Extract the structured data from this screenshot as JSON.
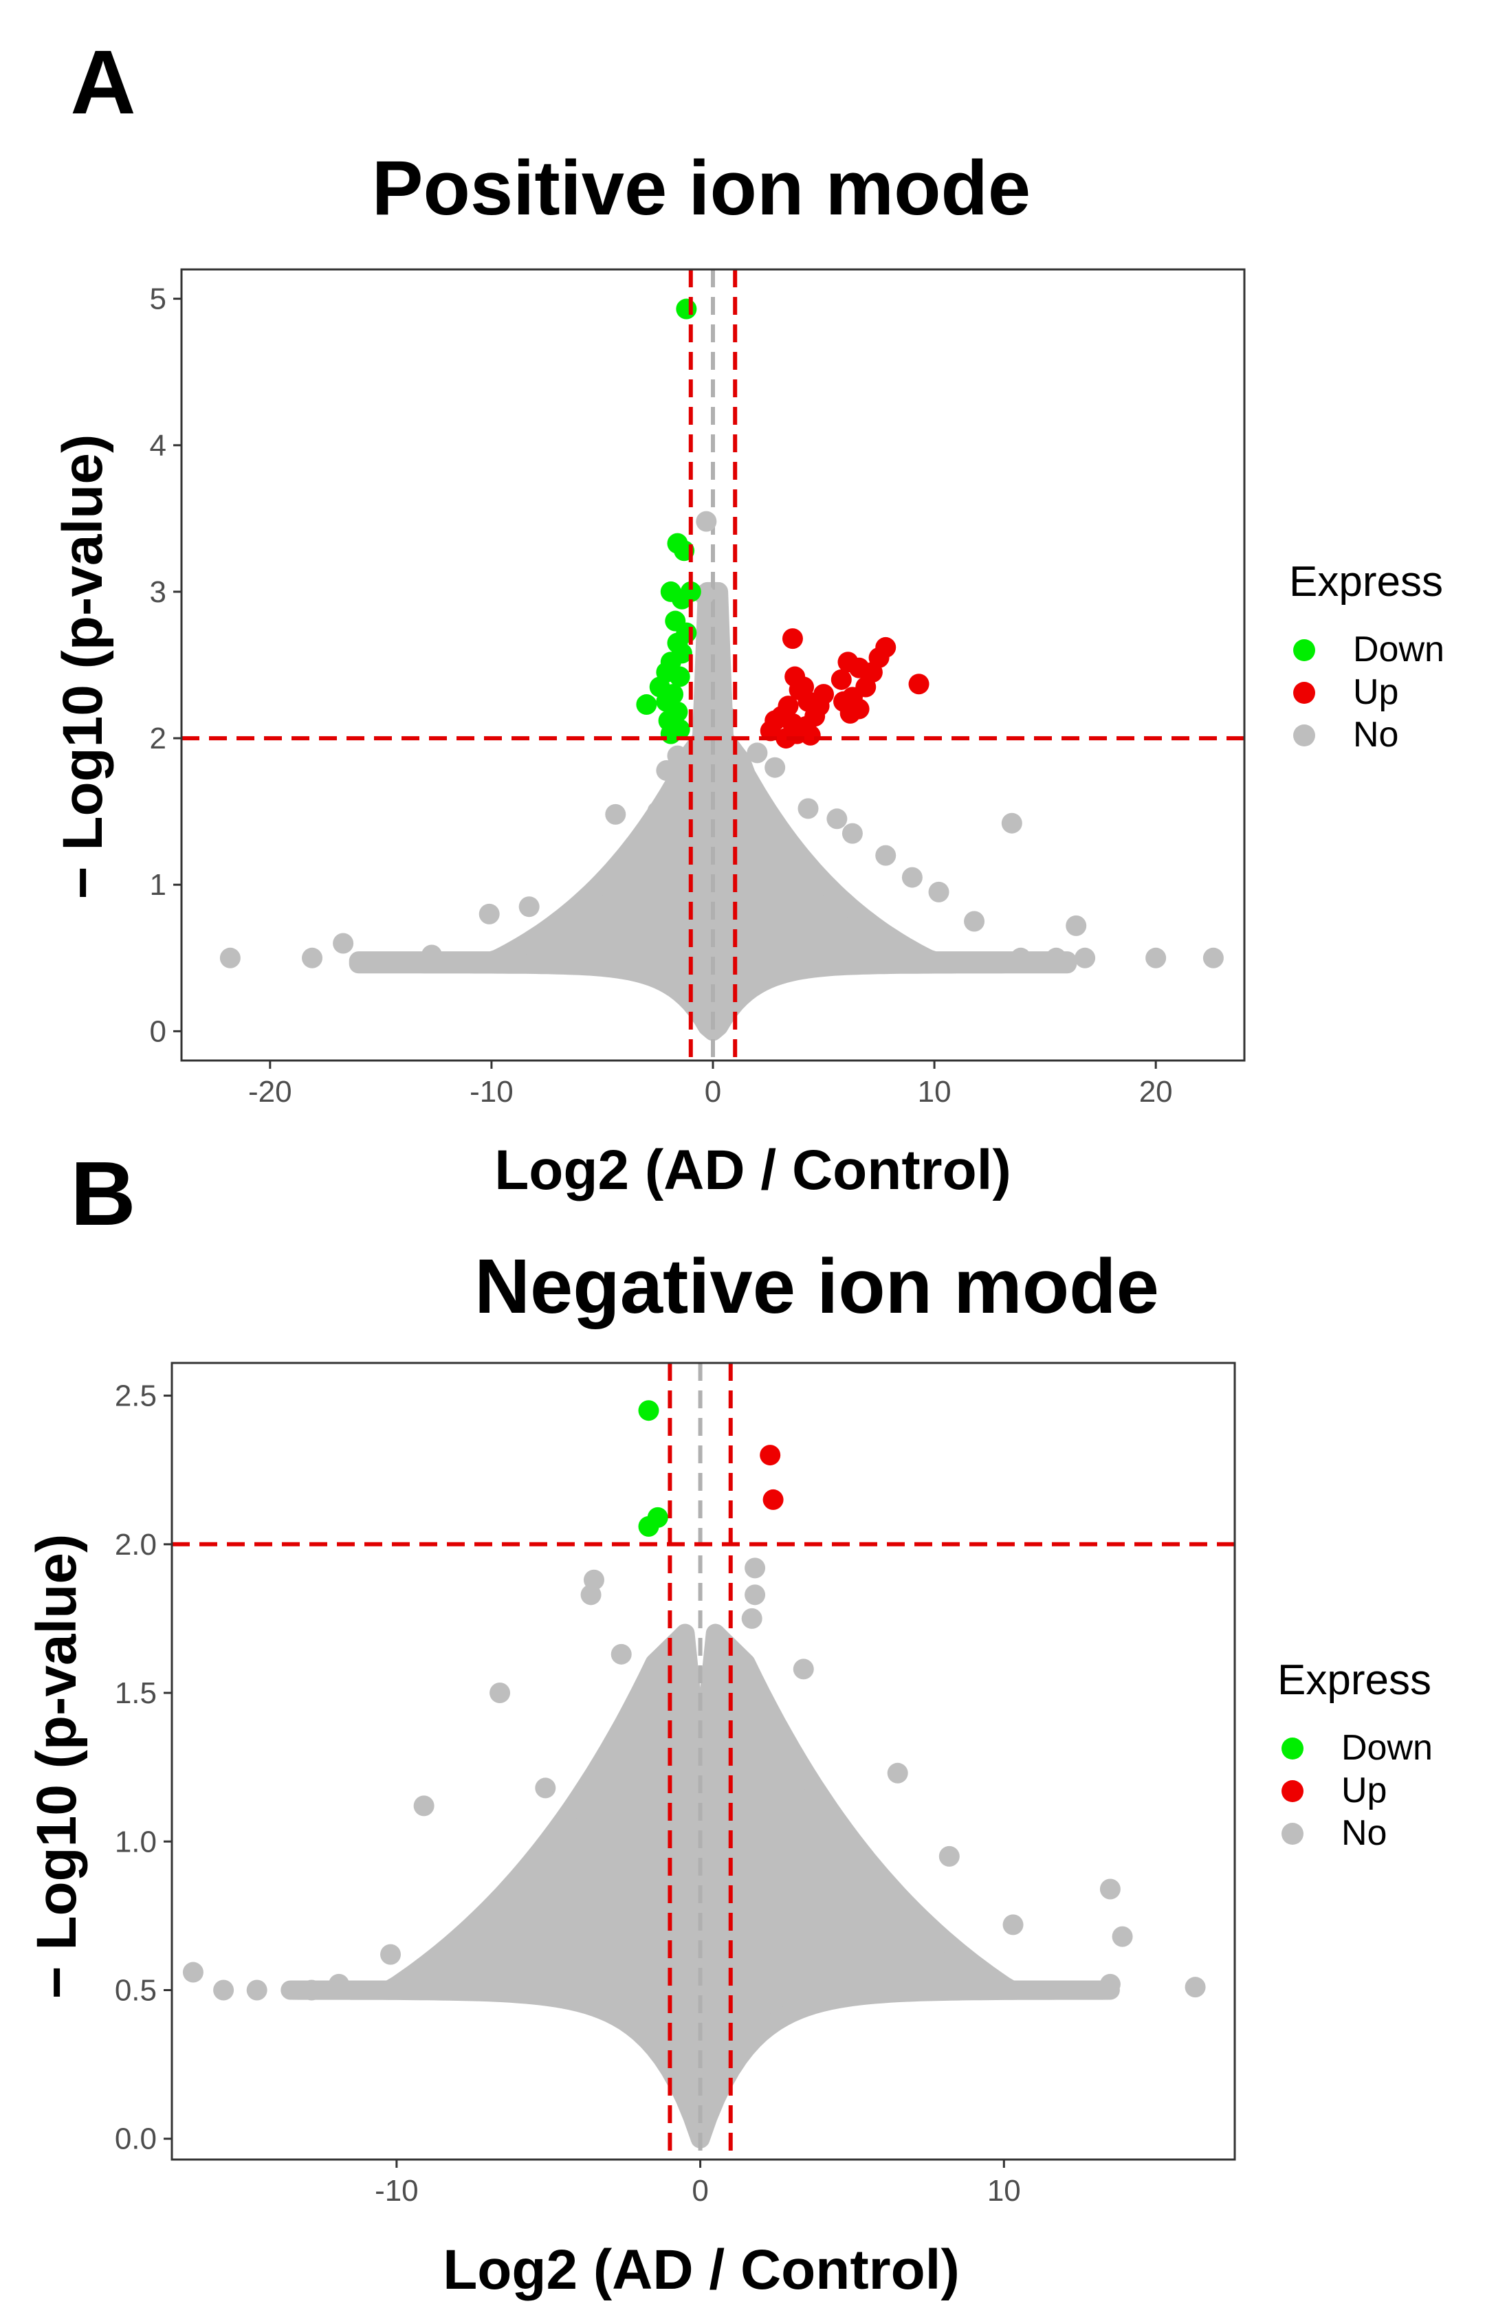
{
  "panels": [
    {
      "letter": "A",
      "chart_data": {
        "type": "scatter",
        "title": "Positive ion mode",
        "xlabel": "Log2 (AD / Control)",
        "ylabel": "− Log10 (p-value)",
        "xlim": [
          -24,
          24
        ],
        "ylim": [
          -0.2,
          5.2
        ],
        "xticks": [
          -20,
          -10,
          0,
          10,
          20
        ],
        "yticks": [
          0,
          1,
          2,
          3,
          4,
          5
        ],
        "ytick_labels": [
          "0",
          "1",
          "2",
          "3",
          "4",
          "5"
        ],
        "grid": false,
        "legend": {
          "title": "Express",
          "position": "right",
          "entries": [
            "Down",
            "Up",
            "No"
          ]
        },
        "threshold_lines": {
          "vertical": [
            -1,
            1
          ],
          "horizontal": 2,
          "center": 0
        },
        "colors": {
          "Down": "#00ee00",
          "Up": "#ee0000",
          "No": "#bebebe",
          "threshold": "#e00000",
          "center": "#b0b0b0"
        },
        "series": [
          {
            "name": "Down",
            "points": [
              [
                -1.2,
                4.93
              ],
              [
                -1.6,
                3.33
              ],
              [
                -1.3,
                3.28
              ],
              [
                -1.9,
                3.0
              ],
              [
                -1.0,
                3.0
              ],
              [
                -1.4,
                2.95
              ],
              [
                -1.7,
                2.8
              ],
              [
                -1.2,
                2.72
              ],
              [
                -1.6,
                2.65
              ],
              [
                -1.4,
                2.58
              ],
              [
                -1.9,
                2.52
              ],
              [
                -2.1,
                2.45
              ],
              [
                -1.5,
                2.42
              ],
              [
                -2.4,
                2.35
              ],
              [
                -1.8,
                2.3
              ],
              [
                -2.1,
                2.25
              ],
              [
                -3.0,
                2.23
              ],
              [
                -1.6,
                2.18
              ],
              [
                -2.0,
                2.12
              ],
              [
                -1.5,
                2.06
              ],
              [
                -1.9,
                2.03
              ]
            ]
          },
          {
            "name": "Up",
            "points": [
              [
                3.6,
                2.68
              ],
              [
                7.8,
                2.62
              ],
              [
                7.5,
                2.55
              ],
              [
                6.1,
                2.52
              ],
              [
                6.6,
                2.48
              ],
              [
                7.2,
                2.45
              ],
              [
                3.7,
                2.42
              ],
              [
                5.8,
                2.4
              ],
              [
                9.3,
                2.37
              ],
              [
                4.1,
                2.35
              ],
              [
                6.9,
                2.35
              ],
              [
                3.9,
                2.33
              ],
              [
                5.0,
                2.3
              ],
              [
                6.3,
                2.28
              ],
              [
                4.3,
                2.25
              ],
              [
                5.9,
                2.25
              ],
              [
                3.4,
                2.22
              ],
              [
                4.8,
                2.22
              ],
              [
                6.6,
                2.2
              ],
              [
                6.2,
                2.17
              ],
              [
                3.1,
                2.15
              ],
              [
                4.6,
                2.15
              ],
              [
                2.8,
                2.12
              ],
              [
                3.6,
                2.1
              ],
              [
                4.2,
                2.08
              ],
              [
                2.6,
                2.05
              ],
              [
                3.8,
                2.03
              ],
              [
                4.4,
                2.02
              ],
              [
                3.3,
                2.0
              ]
            ]
          },
          {
            "name": "No",
            "points": [
              [
                -21.8,
                0.5
              ],
              [
                -18.1,
                0.5
              ],
              [
                -16.7,
                0.6
              ],
              [
                -12.7,
                0.52
              ],
              [
                -10.1,
                0.8
              ],
              [
                -8.3,
                0.85
              ],
              [
                -7.7,
                0.6
              ],
              [
                -4.4,
                1.48
              ],
              [
                -3.7,
                1.23
              ],
              [
                -2.5,
                1.5
              ],
              [
                -2.1,
                1.78
              ],
              [
                -1.6,
                1.88
              ],
              [
                -0.3,
                3.48
              ],
              [
                -0.4,
                2.98
              ],
              [
                0.6,
                2.15
              ],
              [
                2.0,
                1.9
              ],
              [
                2.8,
                1.8
              ],
              [
                4.3,
                1.52
              ],
              [
                5.6,
                1.45
              ],
              [
                6.3,
                1.35
              ],
              [
                7.8,
                1.2
              ],
              [
                9.0,
                1.05
              ],
              [
                10.2,
                0.95
              ],
              [
                11.8,
                0.75
              ],
              [
                13.5,
                1.42
              ],
              [
                13.9,
                0.5
              ],
              [
                15.5,
                0.5
              ],
              [
                16.4,
                0.72
              ],
              [
                16.8,
                0.5
              ],
              [
                20.0,
                0.5
              ],
              [
                22.6,
                0.5
              ]
            ]
          }
        ]
      }
    },
    {
      "letter": "B",
      "chart_data": {
        "type": "scatter",
        "title": "Negative ion mode",
        "xlabel": "Log2 (AD / Control)",
        "ylabel": "− Log10 (p-value)",
        "xlim": [
          -17.4,
          17.6
        ],
        "ylim": [
          -0.07,
          2.61
        ],
        "xticks": [
          -10,
          0,
          10
        ],
        "yticks": [
          0,
          0.5,
          1.0,
          1.5,
          2.0,
          2.5
        ],
        "ytick_labels": [
          "0.0",
          "0.5",
          "1.0",
          "1.5",
          "2.0",
          "2.5"
        ],
        "grid": false,
        "legend": {
          "title": "Express",
          "position": "right",
          "entries": [
            "Down",
            "Up",
            "No"
          ]
        },
        "threshold_lines": {
          "vertical": [
            -1,
            1
          ],
          "horizontal": 2,
          "center": 0
        },
        "colors": {
          "Down": "#00ee00",
          "Up": "#ee0000",
          "No": "#bebebe",
          "threshold": "#e00000",
          "center": "#b0b0b0"
        },
        "series": [
          {
            "name": "Down",
            "points": [
              [
                -1.7,
                2.45
              ],
              [
                -1.4,
                2.09
              ],
              [
                -1.7,
                2.06
              ]
            ]
          },
          {
            "name": "Up",
            "points": [
              [
                2.3,
                2.3
              ],
              [
                2.4,
                2.15
              ]
            ]
          },
          {
            "name": "No",
            "points": [
              [
                -16.7,
                0.56
              ],
              [
                -15.7,
                0.5
              ],
              [
                -14.6,
                0.5
              ],
              [
                -12.8,
                0.5
              ],
              [
                -11.9,
                0.52
              ],
              [
                -10.2,
                0.62
              ],
              [
                -9.1,
                1.12
              ],
              [
                -6.6,
                1.5
              ],
              [
                -5.1,
                1.18
              ],
              [
                -3.5,
                1.88
              ],
              [
                -3.6,
                1.83
              ],
              [
                -2.6,
                1.63
              ],
              [
                -1.8,
                1.48
              ],
              [
                1.7,
                1.75
              ],
              [
                1.8,
                1.83
              ],
              [
                1.8,
                1.92
              ],
              [
                1.7,
                1.55
              ],
              [
                3.4,
                1.58
              ],
              [
                6.5,
                1.23
              ],
              [
                8.2,
                0.95
              ],
              [
                10.3,
                0.72
              ],
              [
                13.5,
                0.84
              ],
              [
                13.9,
                0.68
              ],
              [
                13.5,
                0.52
              ],
              [
                16.3,
                0.51
              ]
            ]
          }
        ]
      }
    }
  ]
}
